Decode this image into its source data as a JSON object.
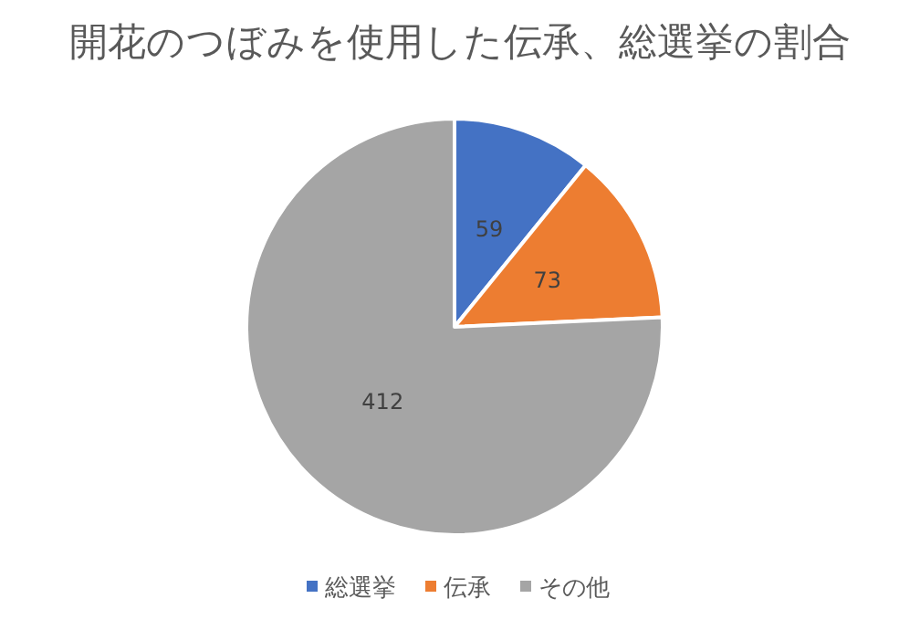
{
  "chart_data": {
    "type": "pie",
    "title": "開花のつぼみを使用した伝承、総選挙の割合",
    "categories": [
      "総選挙",
      "伝承",
      "その他"
    ],
    "values": [
      59,
      73,
      412
    ],
    "colors": [
      "#4472c4",
      "#ed7d31",
      "#a5a5a5"
    ],
    "data_labels": true,
    "legend": "bottom"
  }
}
